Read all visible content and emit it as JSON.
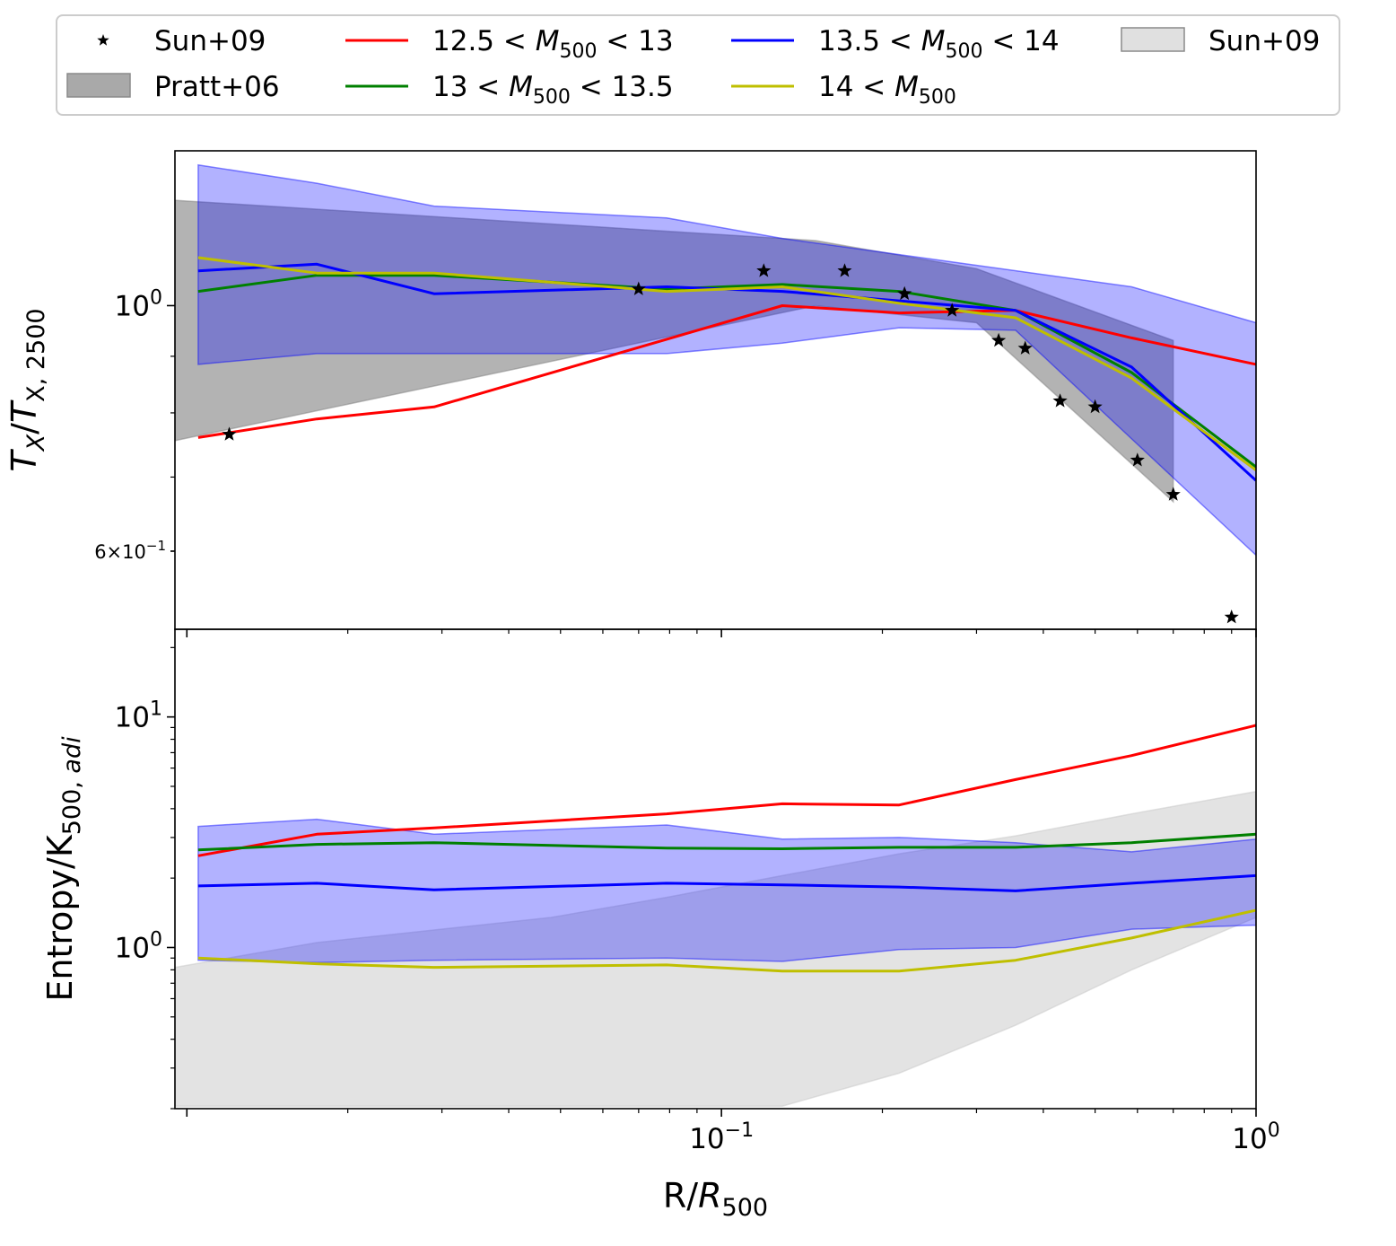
{
  "legend": {
    "entries": [
      {
        "label": "Sun+09",
        "kind": "marker",
        "color": "#000000"
      },
      {
        "label": "12.5 < M500 < 13",
        "kind": "line",
        "color": "#ff0000"
      },
      {
        "label": "13.5 < M500 < 14",
        "kind": "line",
        "color": "#0000ff"
      },
      {
        "label": "Sun+09",
        "kind": "band",
        "color": "#e0e0e0"
      },
      {
        "label": "Pratt+06",
        "kind": "band",
        "color": "#a9a9a9"
      },
      {
        "label": "13 < M500 < 13.5",
        "kind": "line",
        "color": "#008000"
      },
      {
        "label": "14 < M500",
        "kind": "line",
        "color": "#bfbf00"
      }
    ]
  },
  "chart_data": [
    {
      "type": "line",
      "panel": "top",
      "xscale": "log",
      "yscale": "log",
      "xlim": [
        0.0095,
        1.0
      ],
      "ylim": [
        0.51,
        1.38
      ],
      "ylabel": "T_X/T_X,2500",
      "yticks": [
        {
          "value": 1.0,
          "label": "10^0"
        },
        {
          "value": 0.6,
          "label": "6×10^-1"
        }
      ],
      "x": [
        0.0105,
        0.0175,
        0.029,
        0.048,
        0.079,
        0.13,
        0.215,
        0.355,
        0.585,
        1.0
      ],
      "series": [
        {
          "name": "12.5 < M500 < 13",
          "color": "#ff0000",
          "values": [
            0.76,
            0.79,
            0.81,
            null,
            null,
            1.0,
            0.985,
            0.99,
            0.935,
            0.885
          ]
        },
        {
          "name": "13 < M500 < 13.5",
          "color": "#008000",
          "values": [
            1.03,
            1.065,
            1.065,
            null,
            1.035,
            1.045,
            1.03,
            0.99,
            0.87,
            0.715
          ]
        },
        {
          "name": "13.5 < M500 < 14",
          "color": "#0000ff",
          "values": [
            1.075,
            1.09,
            1.025,
            null,
            1.04,
            1.03,
            1.01,
            0.99,
            0.88,
            0.695
          ]
        },
        {
          "name": "14 < M500",
          "color": "#bfbf00",
          "values": [
            1.105,
            1.07,
            1.07,
            null,
            1.03,
            1.04,
            1.005,
            0.975,
            0.86,
            0.71
          ]
        }
      ],
      "bands": [
        {
          "name": "13.5 < M500 < 14 scatter",
          "color": "#0000ff",
          "x": [
            0.0105,
            0.0175,
            0.029,
            0.048,
            0.079,
            0.13,
            0.215,
            0.355,
            0.585,
            1.0
          ],
          "upper": [
            1.34,
            1.29,
            1.23,
            null,
            1.2,
            1.15,
            null,
            null,
            1.04,
            0.965
          ],
          "lower": [
            0.885,
            0.905,
            0.905,
            null,
            0.905,
            0.925,
            0.955,
            0.95,
            null,
            0.595
          ]
        },
        {
          "name": "Pratt+06",
          "color": "#808080",
          "x": [
            0.0095,
            0.15,
            0.3,
            0.7
          ],
          "upper": [
            1.245,
            1.145,
            1.08,
            0.93
          ],
          "lower": [
            0.755,
            1.0,
            0.965,
            0.665
          ]
        }
      ],
      "points": {
        "name": "Sun+09",
        "marker": "star",
        "color": "#000000",
        "x": [
          0.012,
          0.07,
          0.12,
          0.17,
          0.22,
          0.27,
          0.33,
          0.37,
          0.43,
          0.5,
          0.6,
          0.7,
          0.9
        ],
        "y": [
          0.765,
          1.035,
          1.075,
          1.075,
          1.025,
          0.99,
          0.93,
          0.915,
          0.82,
          0.81,
          0.725,
          0.675,
          0.523
        ]
      }
    },
    {
      "type": "line",
      "panel": "bottom",
      "xscale": "log",
      "yscale": "log",
      "xlim": [
        0.0095,
        1.0
      ],
      "ylim": [
        0.2,
        24.0
      ],
      "xlabel": "R/R500",
      "ylabel": "Entropy/K500,adi",
      "xticks": [
        {
          "value": 0.1,
          "label": "10^-1"
        },
        {
          "value": 1.0,
          "label": "10^0"
        }
      ],
      "yticks": [
        {
          "value": 1.0,
          "label": "10^0"
        },
        {
          "value": 10.0,
          "label": "10^1"
        }
      ],
      "x": [
        0.0105,
        0.0175,
        0.029,
        0.048,
        0.079,
        0.13,
        0.215,
        0.355,
        0.585,
        1.0
      ],
      "series": [
        {
          "name": "12.5 < M500 < 13",
          "color": "#ff0000",
          "values": [
            2.5,
            3.1,
            3.3,
            null,
            3.8,
            4.2,
            4.15,
            5.35,
            6.8,
            9.2
          ]
        },
        {
          "name": "13 < M500 < 13.5",
          "color": "#008000",
          "values": [
            2.65,
            2.8,
            2.85,
            null,
            2.7,
            2.68,
            2.72,
            2.72,
            2.85,
            3.1
          ]
        },
        {
          "name": "13.5 < M500 < 14",
          "color": "#0000ff",
          "values": [
            1.85,
            1.9,
            1.78,
            null,
            1.9,
            1.87,
            1.83,
            1.76,
            1.9,
            2.05
          ]
        },
        {
          "name": "14 < M500",
          "color": "#bfbf00",
          "values": [
            0.9,
            0.85,
            0.82,
            null,
            0.84,
            0.79,
            0.79,
            0.88,
            1.1,
            1.45
          ]
        }
      ],
      "bands": [
        {
          "name": "13.5 < M500 < 14 scatter",
          "color": "#0000ff",
          "x": [
            0.0105,
            0.0175,
            0.029,
            0.048,
            0.079,
            0.13,
            0.215,
            0.355,
            0.585,
            1.0
          ],
          "upper": [
            3.35,
            3.6,
            3.1,
            null,
            3.4,
            2.95,
            3.0,
            2.85,
            2.6,
            2.95
          ],
          "lower": [
            0.88,
            0.86,
            0.88,
            null,
            0.9,
            0.87,
            0.98,
            1.0,
            1.2,
            1.25
          ]
        },
        {
          "name": "Sun+09",
          "color": "#c8c8c8",
          "x": [
            0.0095,
            0.0175,
            0.048,
            0.079,
            0.13,
            0.215,
            0.355,
            0.585,
            1.0
          ],
          "upper": [
            0.82,
            1.05,
            1.35,
            1.65,
            2.05,
            2.55,
            3.05,
            3.8,
            4.75
          ],
          "lower": [
            0.205,
            0.205,
            0.205,
            0.205,
            0.205,
            0.285,
            0.46,
            0.8,
            1.35
          ]
        }
      ]
    }
  ]
}
